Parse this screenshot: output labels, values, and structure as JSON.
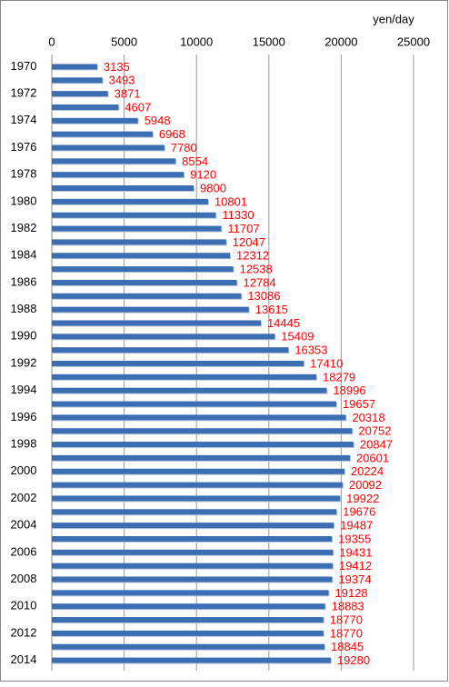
{
  "chart_data": {
    "type": "bar",
    "orientation": "horizontal",
    "x_label": "yen/day",
    "categories": [
      "1970",
      null,
      "1972",
      null,
      "1974",
      null,
      "1976",
      null,
      "1978",
      null,
      "1980",
      null,
      "1982",
      null,
      "1984",
      null,
      "1986",
      null,
      "1988",
      null,
      "1990",
      null,
      "1992",
      null,
      "1994",
      null,
      "1996",
      null,
      "1998",
      null,
      "2000",
      null,
      "2002",
      null,
      "2004",
      null,
      "2006",
      null,
      "2008",
      null,
      "2010",
      null,
      "2012",
      null,
      "2014"
    ],
    "values": [
      3135,
      3493,
      3871,
      4607,
      5948,
      6968,
      7780,
      8554,
      9120,
      9800,
      10801,
      11330,
      11707,
      12047,
      12312,
      12538,
      12784,
      13086,
      13615,
      14445,
      15409,
      16353,
      17410,
      18279,
      18996,
      19657,
      20318,
      20752,
      20847,
      20601,
      20224,
      20092,
      19922,
      19676,
      19487,
      19355,
      19431,
      19412,
      19374,
      19128,
      18883,
      18770,
      18770,
      18845,
      19280
    ],
    "color": "#3c6eb4",
    "label_color": "#ff0000",
    "xlim": [
      0,
      25000
    ],
    "xticks": [
      0,
      5000,
      10000,
      15000,
      20000,
      25000
    ],
    "grid": true
  }
}
